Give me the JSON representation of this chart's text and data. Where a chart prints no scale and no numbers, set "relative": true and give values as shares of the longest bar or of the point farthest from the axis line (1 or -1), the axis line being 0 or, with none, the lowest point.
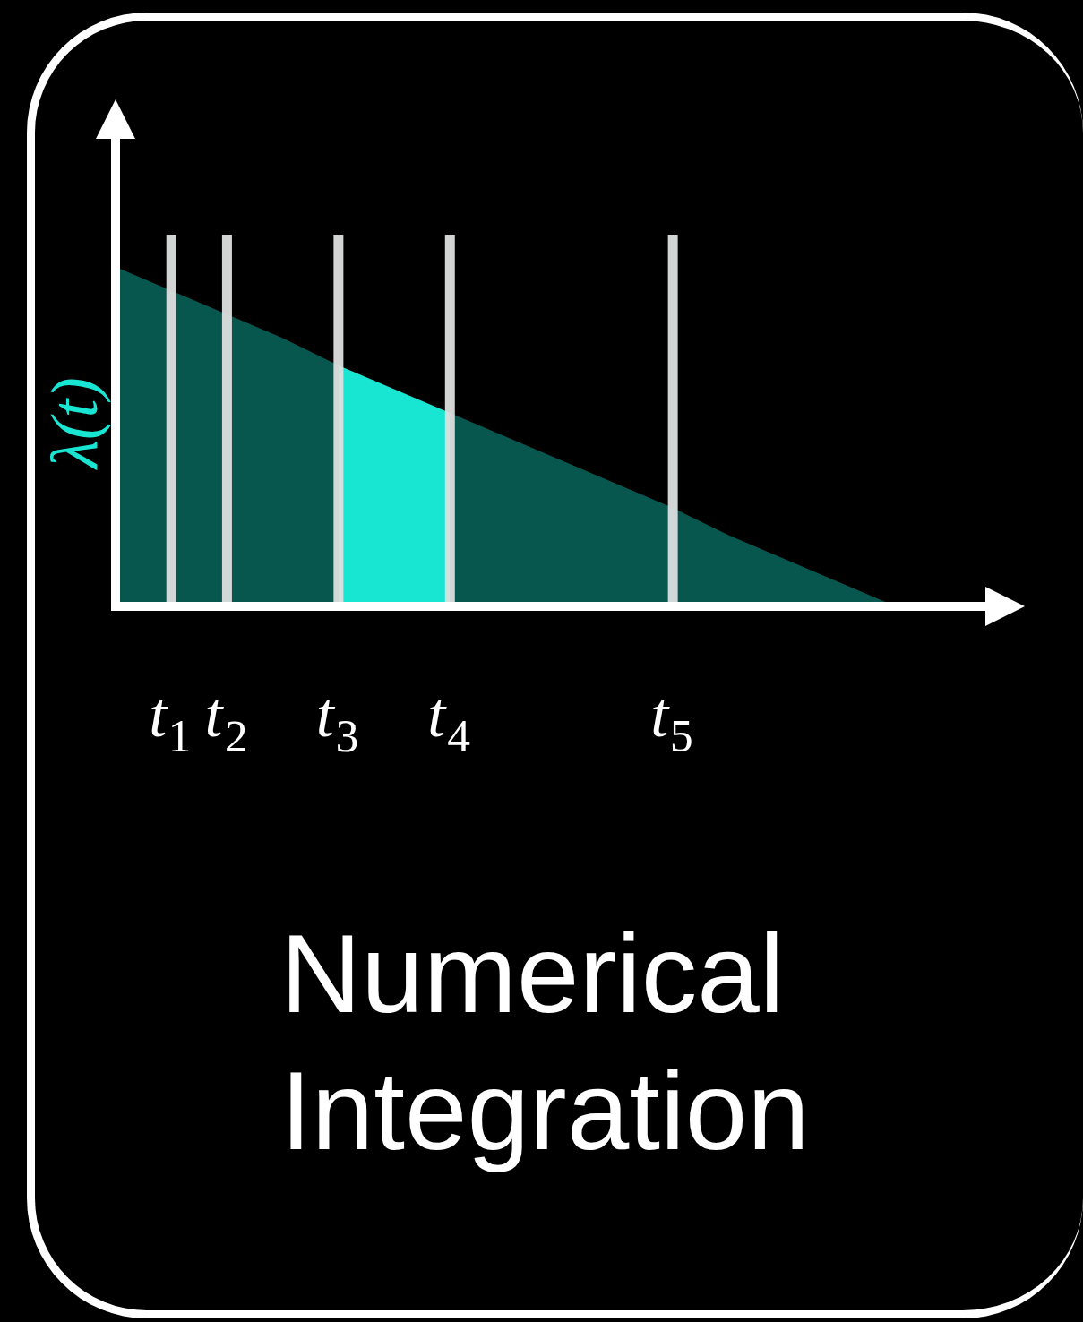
{
  "chart_data": {
    "type": "area",
    "relative": true,
    "title": "Numerical Integration",
    "ylabel": "λ(t)",
    "categories": [
      null,
      "t₁",
      "t₂",
      null,
      "t₃",
      null,
      "t₄",
      null,
      null,
      null,
      "t₅",
      null,
      null,
      null,
      null
    ],
    "tick_labels": "x",
    "grid": "x",
    "series": [
      {
        "color": "#08574f",
        "values": [
          1,
          0.93,
          0.86,
          0.79,
          0.71,
          null,
          0.57,
          0.5,
          0.43,
          0.36,
          0.29,
          0.21,
          0.14,
          0.07,
          0
        ]
      },
      {
        "color": "#19e6d2",
        "values": [
          null,
          null,
          null,
          null,
          0.71,
          0.64,
          0.57,
          null,
          null,
          null,
          null,
          null,
          null,
          null,
          null
        ]
      }
    ]
  }
}
